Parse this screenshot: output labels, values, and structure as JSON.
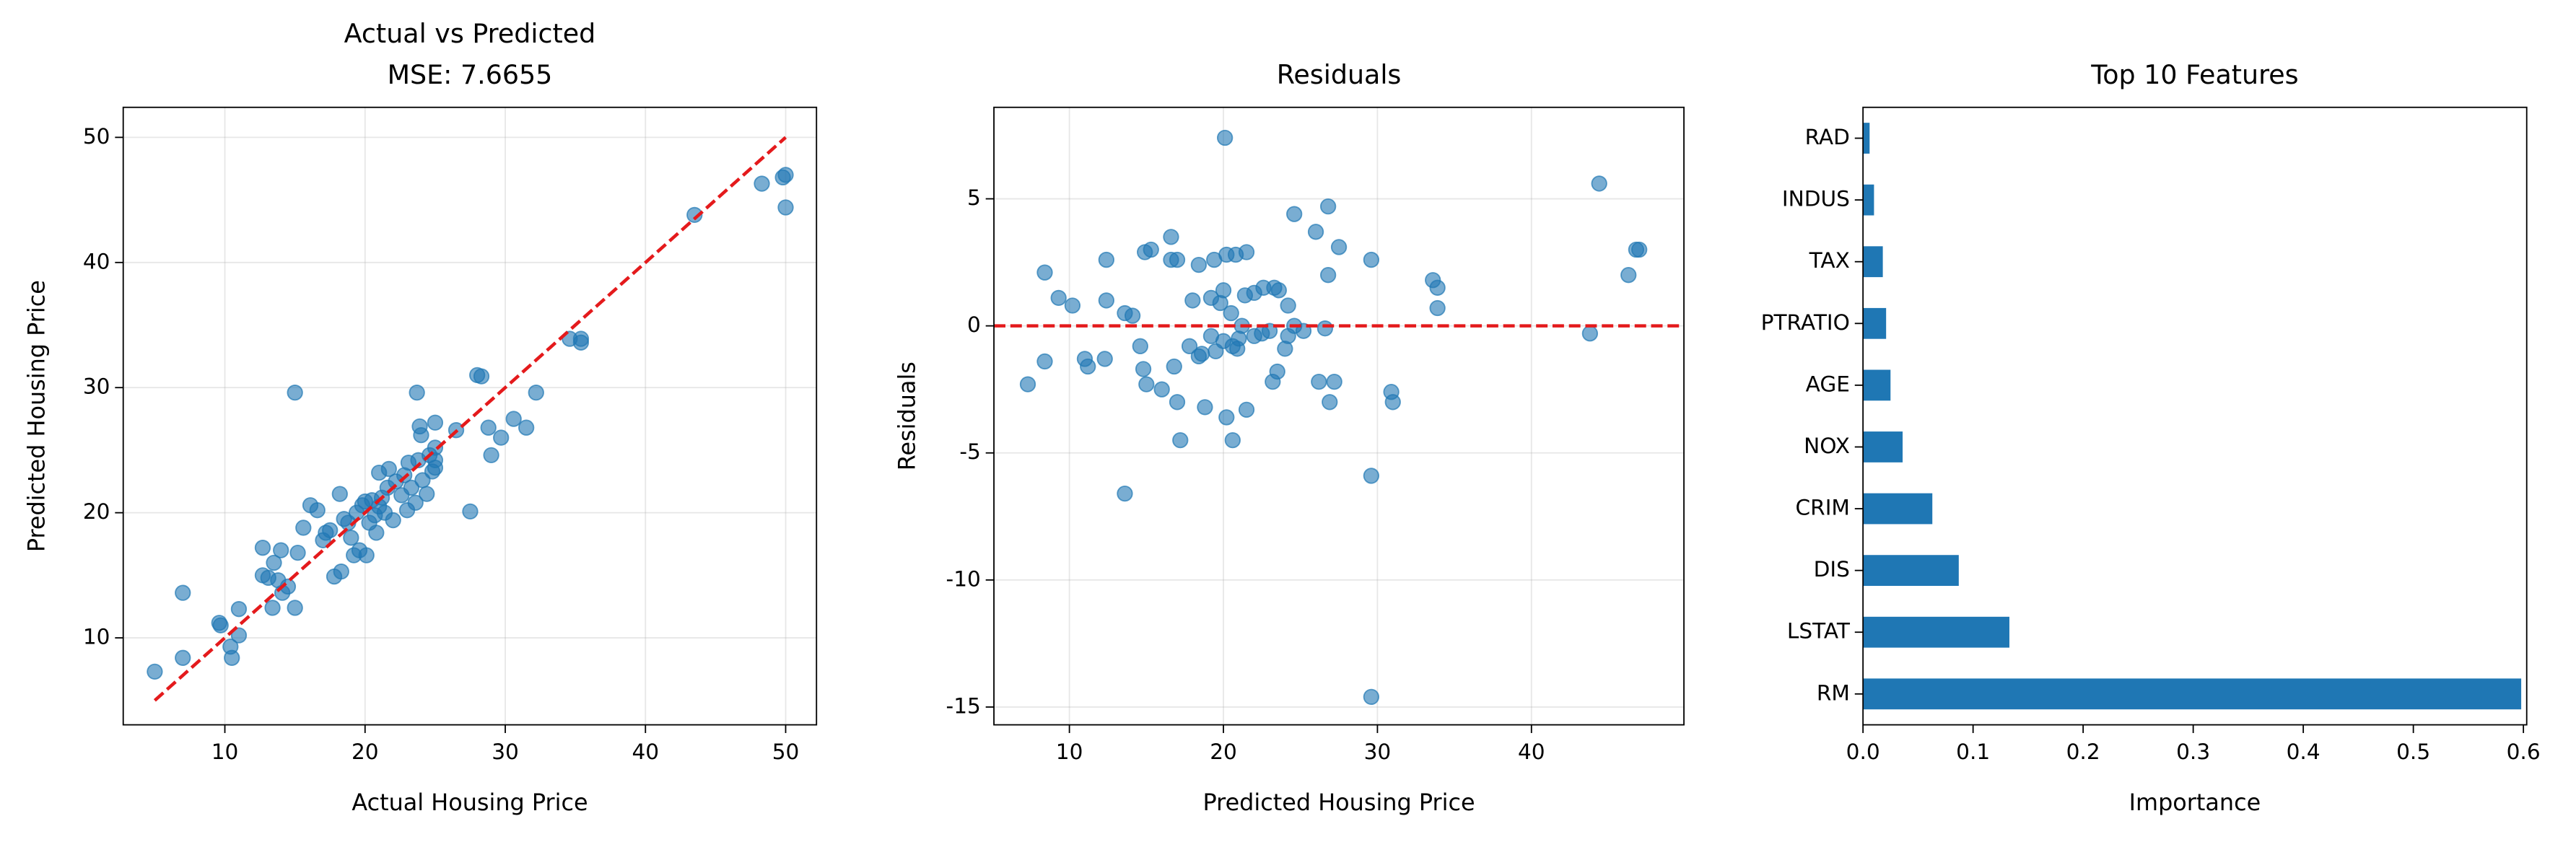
{
  "chart_data": [
    {
      "type": "scatter",
      "title": "Actual vs Predicted",
      "subtitle": "MSE: 7.6655",
      "x_label": "Actual Housing Price",
      "y_label": "Predicted Housing Price",
      "color": "#1f77b4",
      "grid": true,
      "xlim": [
        2.75,
        52.2
      ],
      "ylim": [
        3.05,
        52.4
      ],
      "xticks": [
        10,
        20,
        30,
        40,
        50
      ],
      "yticks": [
        10,
        20,
        30,
        40,
        50
      ],
      "reference_line": {
        "x": [
          5,
          50
        ],
        "y": [
          5,
          50
        ],
        "color": "#e41a1c"
      },
      "x": [
        5,
        7,
        7,
        9.6,
        9.7,
        10.4,
        10.5,
        11,
        11,
        12.7,
        12.7,
        13.1,
        13.4,
        13.5,
        13.8,
        14,
        14.1,
        14.5,
        15,
        15,
        15.2,
        15.6,
        16.1,
        16.6,
        17,
        17.2,
        17.5,
        17.8,
        18.2,
        18.3,
        18.5,
        18.8,
        19,
        19.2,
        19.4,
        19.6,
        19.8,
        20,
        20.1,
        20.3,
        20.5,
        20.7,
        20.8,
        21,
        21,
        21.2,
        21.4,
        21.6,
        21.7,
        22,
        22.2,
        22.6,
        22.8,
        23,
        23.1,
        23.3,
        23.6,
        23.7,
        23.8,
        23.9,
        24,
        24.1,
        24.4,
        24.6,
        24.8,
        25,
        25,
        25,
        25,
        26.5,
        27.5,
        28,
        28.3,
        28.8,
        29,
        29.7,
        30.6,
        31.5,
        32.2,
        34.6,
        35.4,
        35.4,
        43.5,
        48.3,
        49.8,
        50,
        50
      ],
      "y": [
        7.3,
        8.4,
        13.6,
        11.2,
        11,
        9.3,
        8.4,
        10.2,
        12.3,
        17.2,
        15,
        14.8,
        12.4,
        16,
        14.6,
        17,
        13.6,
        14.1,
        12.4,
        29.6,
        16.8,
        18.8,
        20.6,
        20.2,
        17.8,
        18.4,
        18.6,
        14.9,
        21.5,
        15.3,
        19.5,
        19.2,
        18,
        16.6,
        20,
        17,
        20.6,
        20.9,
        16.6,
        19.2,
        21,
        19.8,
        18.4,
        23.2,
        20.5,
        21.2,
        20,
        22,
        23.5,
        19.4,
        22.5,
        21.4,
        23,
        20.2,
        24,
        22,
        20.8,
        29.6,
        24.2,
        26.9,
        26.2,
        22.6,
        21.5,
        24.6,
        23.3,
        23.6,
        24.2,
        25.2,
        27.2,
        26.6,
        20.1,
        31,
        30.9,
        26.8,
        24.6,
        26,
        27.5,
        26.8,
        29.6,
        33.9,
        33.9,
        33.6,
        43.8,
        46.3,
        46.8,
        47,
        44.4
      ]
    },
    {
      "type": "scatter",
      "title": "Residuals",
      "x_label": "Predicted Housing Price",
      "y_label": "Residuals",
      "color": "#1f77b4",
      "grid": true,
      "xlim": [
        5.1,
        49.9
      ],
      "ylim": [
        -15.7,
        8.6
      ],
      "xticks": [
        10,
        20,
        30,
        40
      ],
      "yticks": [
        -15,
        -10,
        -5,
        0,
        5
      ],
      "hline": {
        "y": 0,
        "color": "#e41a1c"
      },
      "x": [
        7.3,
        8.4,
        13.6,
        11.2,
        11,
        9.3,
        8.4,
        10.2,
        12.3,
        17.2,
        15,
        14.8,
        12.4,
        16,
        14.6,
        17,
        13.6,
        14.1,
        12.4,
        29.6,
        16.8,
        18.8,
        20.6,
        20.2,
        17.8,
        18.4,
        18.6,
        14.9,
        21.5,
        15.3,
        19.5,
        19.2,
        18,
        16.6,
        20,
        17,
        20.6,
        20.9,
        16.6,
        19.2,
        21,
        19.8,
        18.4,
        23.2,
        20.5,
        21.2,
        20,
        22,
        23.5,
        19.4,
        22.5,
        21.4,
        23,
        20.2,
        24,
        22,
        20.8,
        29.6,
        24.2,
        26.9,
        26.2,
        22.6,
        21.5,
        24.6,
        23.3,
        23.6,
        24.2,
        25.2,
        27.2,
        26.6,
        20.1,
        31,
        30.9,
        26.8,
        24.6,
        26,
        27.5,
        26.8,
        29.6,
        33.9,
        33.9,
        33.6,
        43.8,
        46.3,
        46.8,
        47,
        44.4
      ],
      "y": [
        -2.3,
        -1.4,
        -6.6,
        -1.6,
        -1.3,
        1.1,
        2.1,
        0.8,
        -1.3,
        -4.5,
        -2.3,
        -1.7,
        1,
        -2.5,
        -0.8,
        -3,
        0.5,
        0.4,
        2.6,
        -14.6,
        -1.6,
        -3.2,
        -4.5,
        -3.6,
        -0.8,
        -1.2,
        -1.1,
        2.9,
        -3.3,
        3,
        -1,
        -0.4,
        1,
        2.6,
        -0.6,
        2.6,
        -0.8,
        -0.9,
        3.5,
        1.1,
        -0.5,
        0.9,
        2.4,
        -2.2,
        0.5,
        0,
        1.4,
        -0.4,
        -1.8,
        2.6,
        -0.3,
        1.2,
        -0.2,
        2.8,
        -0.9,
        1.3,
        2.8,
        -5.9,
        -0.4,
        -3,
        -2.2,
        1.5,
        2.9,
        0,
        1.5,
        1.4,
        0.8,
        -0.2,
        -2.2,
        -0.1,
        7.4,
        -3,
        -2.6,
        2,
        4.4,
        3.7,
        3.1,
        4.7,
        2.6,
        0.7,
        1.5,
        1.8,
        -0.3,
        2,
        3,
        3,
        5.6
      ]
    },
    {
      "type": "barh",
      "title": "Top 10 Features",
      "x_label": "Importance",
      "color": "#1f77b4",
      "grid": false,
      "xlim": [
        0,
        0.603
      ],
      "xticks": [
        {
          "value": 0,
          "label": "0.0"
        },
        0.1,
        0.2,
        0.3,
        0.4,
        0.5,
        0.6
      ],
      "categories": [
        "RM",
        "LSTAT",
        "DIS",
        "CRIM",
        "NOX",
        "AGE",
        "PTRATIO",
        "TAX",
        "INDUS",
        "RAD"
      ],
      "values": [
        0.598,
        0.133,
        0.087,
        0.063,
        0.036,
        0.025,
        0.021,
        0.018,
        0.01,
        0.006
      ]
    }
  ]
}
